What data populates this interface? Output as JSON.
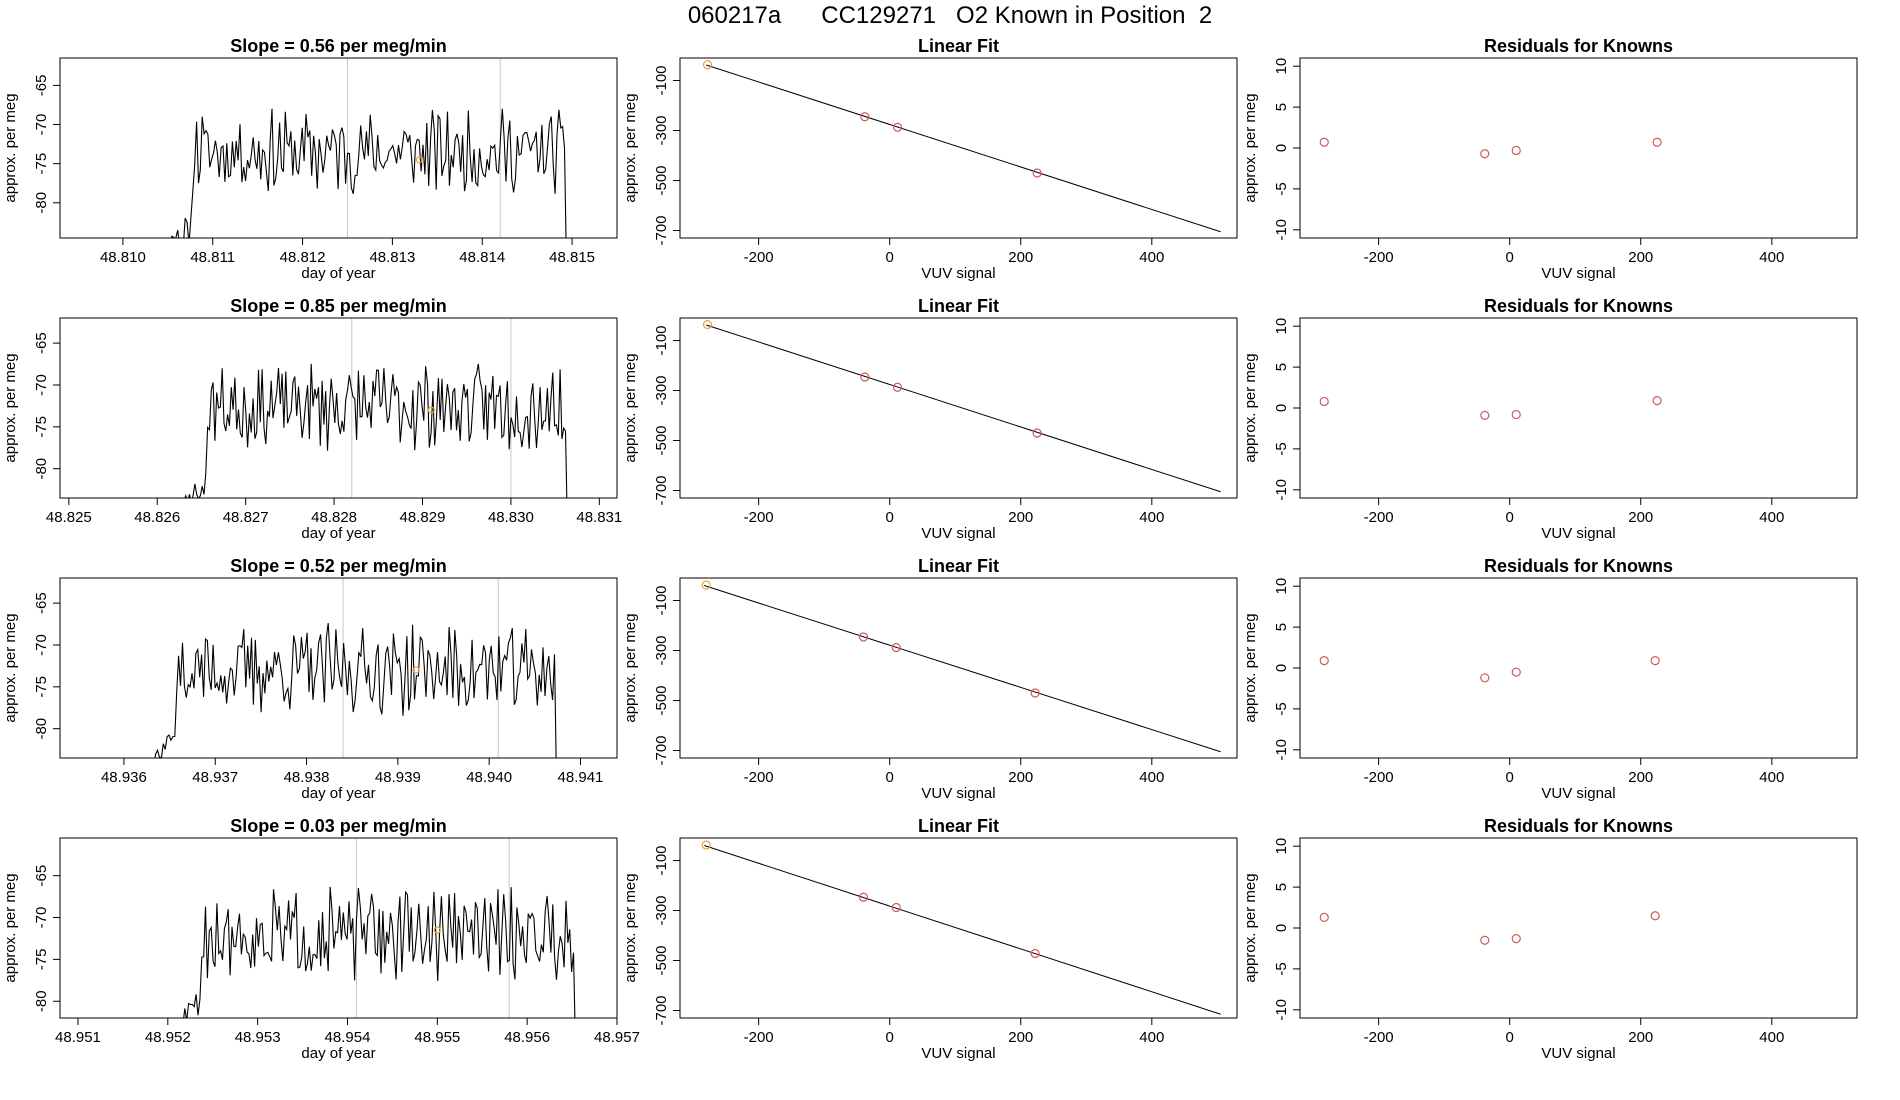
{
  "page": {
    "title_parts": [
      "060217a",
      "CC129271",
      "O2 Known in Position  2"
    ]
  },
  "colors": {
    "line": "#000000",
    "frame": "#000000",
    "vline": "#c8c8c8",
    "known_point": "#d05a5a",
    "standard_point": "#e8a33a",
    "residual_point": "#d05a5a"
  },
  "chart_data": [
    {
      "type": "line",
      "panel": "timeseries",
      "row": 0,
      "title": "Slope =  0.56  per meg/min",
      "xlabel": "day of year",
      "ylabel": "approx. per meg",
      "xlim": [
        48.8093,
        48.8155
      ],
      "ylim": [
        -84.5,
        -61.5
      ],
      "xticks": [
        "48.810",
        "48.811",
        "48.812",
        "48.813",
        "48.814",
        "48.815"
      ],
      "xtick_values": [
        48.81,
        48.811,
        48.812,
        48.813,
        48.814,
        48.815
      ],
      "yticks": [
        "-65",
        "-70",
        "-75",
        "-80"
      ],
      "ytick_values": [
        -65,
        -70,
        -75,
        -80
      ],
      "x_start": 48.8104,
      "x_end": 48.815,
      "n_points": 220,
      "base": -73.5,
      "noise": 2.8,
      "seed": 11,
      "vlines": [
        48.8125,
        48.8142
      ],
      "standard_point": {
        "x": 48.8133,
        "y": -74.5
      }
    },
    {
      "type": "line",
      "panel": "timeseries",
      "row": 1,
      "title": "Slope =  0.85  per meg/min",
      "xlabel": "day of year",
      "ylabel": "approx. per meg",
      "xlim": [
        48.8249,
        48.8312
      ],
      "ylim": [
        -83.5,
        -62
      ],
      "xticks": [
        "48.825",
        "48.826",
        "48.827",
        "48.828",
        "48.829",
        "48.830",
        "48.831"
      ],
      "xtick_values": [
        48.825,
        48.826,
        48.827,
        48.828,
        48.829,
        48.83,
        48.831
      ],
      "yticks": [
        "-65",
        "-70",
        "-75",
        "-80"
      ],
      "ytick_values": [
        -65,
        -70,
        -75,
        -80
      ],
      "x_start": 48.8262,
      "x_end": 48.8307,
      "n_points": 220,
      "base": -72.5,
      "noise": 2.8,
      "seed": 23,
      "vlines": [
        48.8282,
        48.83
      ],
      "standard_point": {
        "x": 48.8291,
        "y": -73
      }
    },
    {
      "type": "line",
      "panel": "timeseries",
      "row": 2,
      "title": "Slope =  0.52  per meg/min",
      "xlabel": "day of year",
      "ylabel": "approx. per meg",
      "xlim": [
        48.9353,
        48.9414
      ],
      "ylim": [
        -83.5,
        -62
      ],
      "xticks": [
        "48.936",
        "48.937",
        "48.938",
        "48.939",
        "48.940",
        "48.941"
      ],
      "xtick_values": [
        48.936,
        48.937,
        48.938,
        48.939,
        48.94,
        48.941
      ],
      "yticks": [
        "-65",
        "-70",
        "-75",
        "-80"
      ],
      "ytick_values": [
        -65,
        -70,
        -75,
        -80
      ],
      "x_start": 48.9362,
      "x_end": 48.9408,
      "n_points": 220,
      "base": -73,
      "noise": 2.8,
      "seed": 37,
      "vlines": [
        48.9384,
        48.9401
      ],
      "standard_point": {
        "x": 48.9392,
        "y": -73
      }
    },
    {
      "type": "line",
      "panel": "timeseries",
      "row": 3,
      "title": "Slope =  0.03  per meg/min",
      "xlabel": "day of year",
      "ylabel": "approx. per meg",
      "xlim": [
        48.9508,
        48.957
      ],
      "ylim": [
        -82,
        -60.5
      ],
      "xticks": [
        "48.951",
        "48.952",
        "48.953",
        "48.954",
        "48.955",
        "48.956",
        "48.957"
      ],
      "xtick_values": [
        48.951,
        48.952,
        48.953,
        48.954,
        48.955,
        48.956,
        48.957
      ],
      "yticks": [
        "-65",
        "-70",
        "-75",
        "-80"
      ],
      "ytick_values": [
        -65,
        -70,
        -75,
        -80
      ],
      "x_start": 48.952,
      "x_end": 48.9566,
      "n_points": 220,
      "base": -72,
      "noise": 2.8,
      "seed": 51,
      "vlines": [
        48.9541,
        48.9558
      ],
      "standard_point": {
        "x": 48.955,
        "y": -71.5
      }
    },
    {
      "type": "scatter",
      "panel": "fit",
      "row": 0,
      "title": "Linear Fit",
      "xlabel": "VUV signal",
      "ylabel": "approx. per meg",
      "xlim": [
        -320,
        530
      ],
      "ylim": [
        -730,
        -10
      ],
      "xticks": [
        "-200",
        "0",
        "200",
        "400"
      ],
      "xtick_values": [
        -200,
        0,
        200,
        400
      ],
      "yticks": [
        "-100",
        "-300",
        "-500",
        "-700"
      ],
      "ytick_values": [
        -100,
        -300,
        -500,
        -700
      ],
      "line": {
        "x": [
          -280,
          505
        ],
        "y": [
          -38,
          -705
        ]
      },
      "points": [
        {
          "x": -38,
          "y": -245
        },
        {
          "x": 12,
          "y": -287
        },
        {
          "x": 225,
          "y": -470
        }
      ],
      "standard": {
        "x": -278,
        "y": -37
      }
    },
    {
      "type": "scatter",
      "panel": "fit",
      "row": 1,
      "title": "Linear Fit",
      "xlabel": "VUV signal",
      "ylabel": "approx. per meg",
      "xlim": [
        -320,
        530
      ],
      "ylim": [
        -730,
        -10
      ],
      "xticks": [
        "-200",
        "0",
        "200",
        "400"
      ],
      "xtick_values": [
        -200,
        0,
        200,
        400
      ],
      "yticks": [
        "-100",
        "-300",
        "-500",
        "-700"
      ],
      "ytick_values": [
        -100,
        -300,
        -500,
        -700
      ],
      "line": {
        "x": [
          -280,
          505
        ],
        "y": [
          -38,
          -705
        ]
      },
      "points": [
        {
          "x": -38,
          "y": -246
        },
        {
          "x": 12,
          "y": -287
        },
        {
          "x": 225,
          "y": -470
        }
      ],
      "standard": {
        "x": -278,
        "y": -36
      }
    },
    {
      "type": "scatter",
      "panel": "fit",
      "row": 2,
      "title": "Linear Fit",
      "xlabel": "VUV signal",
      "ylabel": "approx. per meg",
      "xlim": [
        -320,
        530
      ],
      "ylim": [
        -730,
        -10
      ],
      "xticks": [
        "-200",
        "0",
        "200",
        "400"
      ],
      "xtick_values": [
        -200,
        0,
        200,
        400
      ],
      "yticks": [
        "-100",
        "-300",
        "-500",
        "-700"
      ],
      "ytick_values": [
        -100,
        -300,
        -500,
        -700
      ],
      "line": {
        "x": [
          -283,
          505
        ],
        "y": [
          -40,
          -705
        ]
      },
      "points": [
        {
          "x": -40,
          "y": -246
        },
        {
          "x": 10,
          "y": -288
        },
        {
          "x": 222,
          "y": -470
        }
      ],
      "standard": {
        "x": -280,
        "y": -38
      }
    },
    {
      "type": "scatter",
      "panel": "fit",
      "row": 3,
      "title": "Linear Fit",
      "xlabel": "VUV signal",
      "ylabel": "approx. per meg",
      "xlim": [
        -320,
        530
      ],
      "ylim": [
        -730,
        -10
      ],
      "xticks": [
        "-200",
        "0",
        "200",
        "400"
      ],
      "xtick_values": [
        -200,
        0,
        200,
        400
      ],
      "yticks": [
        "-100",
        "-300",
        "-500",
        "-700"
      ],
      "ytick_values": [
        -100,
        -300,
        -500,
        -700
      ],
      "line": {
        "x": [
          -283,
          505
        ],
        "y": [
          -40,
          -715
        ]
      },
      "points": [
        {
          "x": -40,
          "y": -247
        },
        {
          "x": 10,
          "y": -288
        },
        {
          "x": 222,
          "y": -472
        }
      ],
      "standard": {
        "x": -280,
        "y": -38
      }
    },
    {
      "type": "scatter",
      "panel": "residuals",
      "row": 0,
      "title": "Residuals for Knowns",
      "xlabel": "VUV signal",
      "ylabel": "approx. per meg",
      "xlim": [
        -320,
        530
      ],
      "ylim": [
        -11,
        11
      ],
      "xticks": [
        "-200",
        "0",
        "200",
        "400"
      ],
      "xtick_values": [
        -200,
        0,
        200,
        400
      ],
      "yticks": [
        "10",
        "5",
        "0",
        "-5",
        "-10"
      ],
      "ytick_values": [
        10,
        5,
        0,
        -5,
        -10
      ],
      "points": [
        {
          "x": -283,
          "y": 0.7
        },
        {
          "x": -38,
          "y": -0.7
        },
        {
          "x": 10,
          "y": -0.3
        },
        {
          "x": 225,
          "y": 0.7
        }
      ]
    },
    {
      "type": "scatter",
      "panel": "residuals",
      "row": 1,
      "title": "Residuals for Knowns",
      "xlabel": "VUV signal",
      "ylabel": "approx. per meg",
      "xlim": [
        -320,
        530
      ],
      "ylim": [
        -11,
        11
      ],
      "xticks": [
        "-200",
        "0",
        "200",
        "400"
      ],
      "xtick_values": [
        -200,
        0,
        200,
        400
      ],
      "yticks": [
        "10",
        "5",
        "0",
        "-5",
        "-10"
      ],
      "ytick_values": [
        10,
        5,
        0,
        -5,
        -10
      ],
      "points": [
        {
          "x": -283,
          "y": 0.8
        },
        {
          "x": -38,
          "y": -0.9
        },
        {
          "x": 10,
          "y": -0.8
        },
        {
          "x": 225,
          "y": 0.9
        }
      ]
    },
    {
      "type": "scatter",
      "panel": "residuals",
      "row": 2,
      "title": "Residuals for Knowns",
      "xlabel": "VUV signal",
      "ylabel": "approx. per meg",
      "xlim": [
        -320,
        530
      ],
      "ylim": [
        -11,
        11
      ],
      "xticks": [
        "-200",
        "0",
        "200",
        "400"
      ],
      "xtick_values": [
        -200,
        0,
        200,
        400
      ],
      "yticks": [
        "10",
        "5",
        "0",
        "-5",
        "-10"
      ],
      "ytick_values": [
        10,
        5,
        0,
        -5,
        -10
      ],
      "points": [
        {
          "x": -283,
          "y": 0.9
        },
        {
          "x": -38,
          "y": -1.2
        },
        {
          "x": 10,
          "y": -0.5
        },
        {
          "x": 222,
          "y": 0.9
        }
      ]
    },
    {
      "type": "scatter",
      "panel": "residuals",
      "row": 3,
      "title": "Residuals for Knowns",
      "xlabel": "VUV signal",
      "ylabel": "approx. per meg",
      "xlim": [
        -320,
        530
      ],
      "ylim": [
        -11,
        11
      ],
      "xticks": [
        "-200",
        "0",
        "200",
        "400"
      ],
      "xtick_values": [
        -200,
        0,
        200,
        400
      ],
      "yticks": [
        "10",
        "5",
        "0",
        "-5",
        "-10"
      ],
      "ytick_values": [
        10,
        5,
        0,
        -5,
        -10
      ],
      "points": [
        {
          "x": -283,
          "y": 1.3
        },
        {
          "x": -38,
          "y": -1.5
        },
        {
          "x": 10,
          "y": -1.3
        },
        {
          "x": 222,
          "y": 1.5
        }
      ]
    }
  ]
}
